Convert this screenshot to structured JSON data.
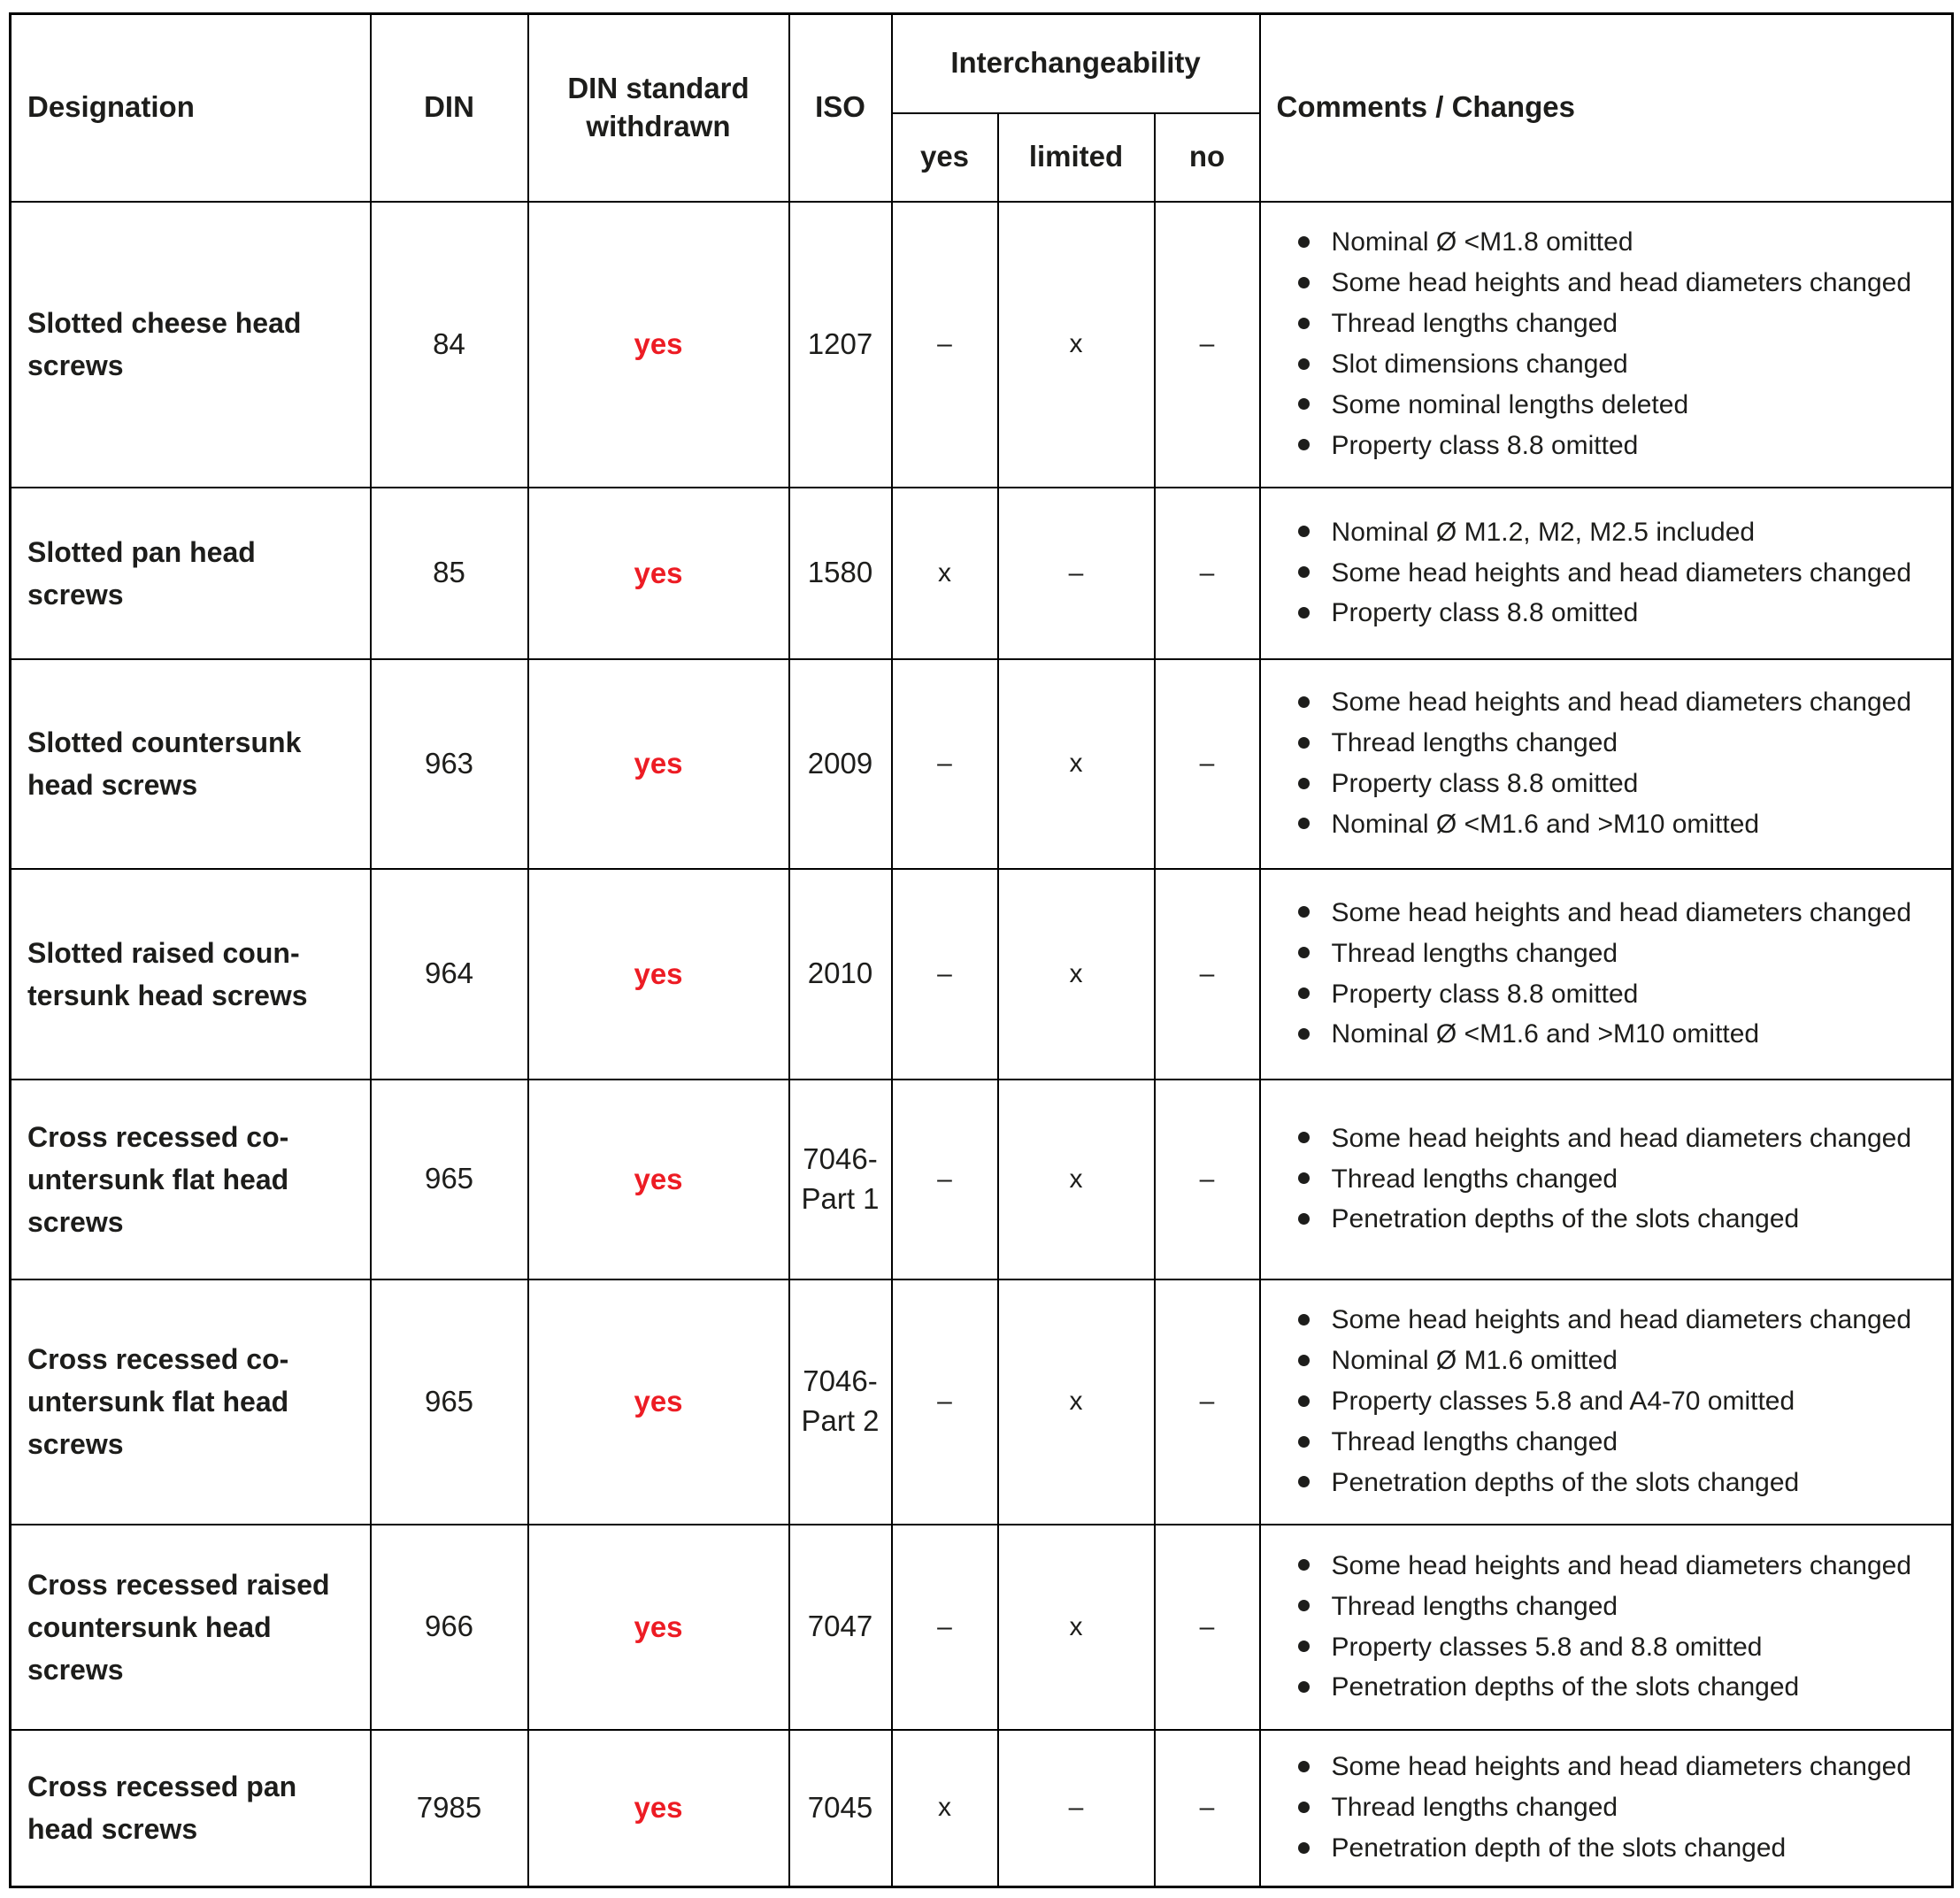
{
  "colors": {
    "withdrawn_red": "#ed1c24",
    "text_black": "#1d1d1b",
    "grid_black": "#000000"
  },
  "table": {
    "headers": {
      "designation": "Designation",
      "din": "DIN",
      "din_withdrawn": "DIN standard withdrawn",
      "iso": "ISO",
      "interchangeability": "Interchangeability",
      "yes": "yes",
      "limited": "limited",
      "no": "no",
      "comments": "Comments / Changes"
    },
    "rows": [
      {
        "designation": "Slotted cheese head\nscrews",
        "din": "84",
        "din_withdrawn": "yes",
        "iso": "1207",
        "interchangeability": {
          "yes": "–",
          "limited": "x",
          "no": "–"
        },
        "comments": [
          "Nominal Ø <M1.8 omitted",
          "Some head heights and head diameters changed",
          "Thread lengths changed",
          "Slot dimensions changed",
          "Some nominal lengths deleted",
          "Property class 8.8 omitted"
        ]
      },
      {
        "designation": "Slotted pan head\nscrews",
        "din": "85",
        "din_withdrawn": "yes",
        "iso": "1580",
        "interchangeability": {
          "yes": "x",
          "limited": "–",
          "no": "–"
        },
        "comments": [
          "Nominal Ø M1.2, M2, M2.5 included",
          "Some head heights and head diameters changed",
          "Property class 8.8 omitted"
        ]
      },
      {
        "designation": "Slotted countersunk\nhead screws",
        "din": "963",
        "din_withdrawn": "yes",
        "iso": "2009",
        "interchangeability": {
          "yes": "–",
          "limited": "x",
          "no": "–"
        },
        "comments": [
          "Some head heights and head diameters changed",
          "Thread lengths changed",
          "Property class 8.8 omitted",
          "Nominal Ø <M1.6 and >M10 omitted"
        ]
      },
      {
        "designation": "Slotted raised coun-\ntersunk head screws",
        "din": "964",
        "din_withdrawn": "yes",
        "iso": "2010",
        "interchangeability": {
          "yes": "–",
          "limited": "x",
          "no": "–"
        },
        "comments": [
          "Some head heights and head diameters changed",
          "Thread lengths changed",
          "Property class 8.8 omitted",
          "Nominal Ø <M1.6 and >M10 omitted"
        ]
      },
      {
        "designation": "Cross recessed co-\nuntersunk flat head\nscrews",
        "din": "965",
        "din_withdrawn": "yes",
        "iso": "7046-\nPart 1",
        "interchangeability": {
          "yes": "–",
          "limited": "x",
          "no": "–"
        },
        "comments": [
          "Some head heights and head diameters changed",
          "Thread lengths changed",
          "Penetration depths of the slots changed"
        ]
      },
      {
        "designation": "Cross recessed co-\nuntersunk flat head\nscrews",
        "din": "965",
        "din_withdrawn": "yes",
        "iso": "7046-\nPart 2",
        "interchangeability": {
          "yes": "–",
          "limited": "x",
          "no": "–"
        },
        "comments": [
          "Some head heights and head diameters changed",
          "Nominal Ø M1.6 omitted",
          "Property classes 5.8 and A4-70 omitted",
          "Thread lengths changed",
          "Penetration depths of the slots changed"
        ]
      },
      {
        "designation": "Cross recessed raised\ncountersunk head\nscrews",
        "din": "966",
        "din_withdrawn": "yes",
        "iso": "7047",
        "interchangeability": {
          "yes": "–",
          "limited": "x",
          "no": "–"
        },
        "comments": [
          "Some head heights and head diameters changed",
          "Thread lengths changed",
          "Property classes 5.8 and 8.8 omitted",
          "Penetration depths of the slots changed"
        ]
      },
      {
        "designation": "Cross recessed pan\nhead screws",
        "din": "7985",
        "din_withdrawn": "yes",
        "iso": "7045",
        "interchangeability": {
          "yes": "x",
          "limited": "–",
          "no": "–"
        },
        "comments": [
          "Some head heights and head diameters changed",
          "Thread lengths changed",
          "Penetration depth of the slots changed"
        ]
      }
    ]
  }
}
